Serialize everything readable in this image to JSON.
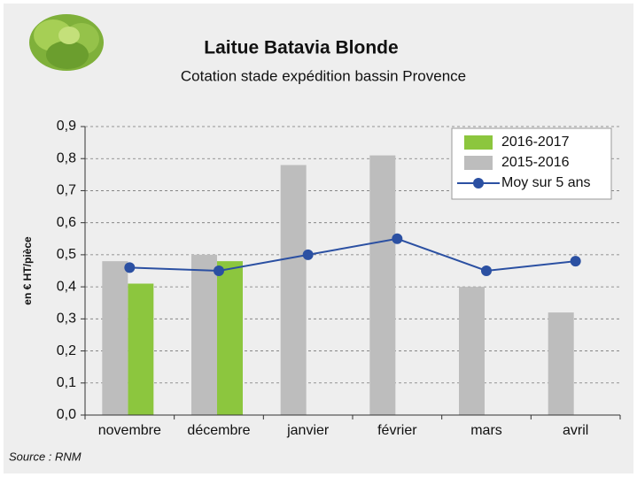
{
  "chart_data": {
    "type": "bar",
    "title": "Laitue Batavia Blonde",
    "subtitle": "Cotation stade expédition bassin Provence",
    "y_label": "en € HT/pièce",
    "source": "Source : RNM",
    "categories": [
      "novembre",
      "décembre",
      "janvier",
      "février",
      "mars",
      "avril"
    ],
    "series": [
      {
        "name": "2016-2017",
        "color": "#8cc63e",
        "kind": "bar",
        "values": [
          0.41,
          0.48,
          null,
          null,
          null,
          null
        ]
      },
      {
        "name": "2015-2016",
        "color": "#bdbdbd",
        "kind": "bar",
        "values": [
          0.48,
          0.5,
          0.78,
          0.81,
          0.4,
          0.32
        ]
      },
      {
        "name": "Moy sur 5 ans",
        "color": "#2b50a2",
        "kind": "line",
        "values": [
          0.46,
          0.45,
          0.5,
          0.55,
          0.45,
          0.48
        ]
      }
    ],
    "ylim": [
      0,
      0.9
    ],
    "yticks": [
      {
        "value": 0,
        "label": "0,0"
      },
      {
        "value": 0.1,
        "label": "0,1"
      },
      {
        "value": 0.2,
        "label": "0,2"
      },
      {
        "value": 0.3,
        "label": "0,3"
      },
      {
        "value": 0.4,
        "label": "0,4"
      },
      {
        "value": 0.5,
        "label": "0,5"
      },
      {
        "value": 0.6,
        "label": "0,6"
      },
      {
        "value": 0.7,
        "label": "0,7"
      },
      {
        "value": 0.8,
        "label": "0,8"
      },
      {
        "value": 0.9,
        "label": "0,9"
      }
    ],
    "grid": true,
    "legend": "top-right"
  }
}
